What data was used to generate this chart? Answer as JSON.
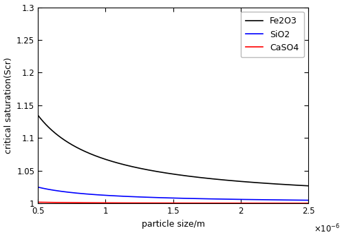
{
  "title": "",
  "xlabel": "particle size/m",
  "ylabel": "critical saturation(Scr)",
  "xlim": [
    5e-07,
    2.5e-06
  ],
  "ylim": [
    1.0,
    1.3
  ],
  "xticks": [
    5e-07,
    1e-06,
    1.5e-06,
    2e-06,
    2.5e-06
  ],
  "xtick_labels": [
    "0.5",
    "1",
    "1.5",
    "2",
    "2.5"
  ],
  "yticks": [
    1.0,
    1.05,
    1.1,
    1.15,
    1.2,
    1.25,
    1.3
  ],
  "ytick_labels": [
    "1",
    "1.05",
    "1.1",
    "1.15",
    "1.2",
    "1.25",
    "1.3"
  ],
  "lines": [
    {
      "label": "Fe2O3",
      "color": "#000000",
      "linewidth": 1.2,
      "C": 6.75e-08
    },
    {
      "label": "SiO2",
      "color": "#0000ff",
      "linewidth": 1.2,
      "C": 1.25e-08
    },
    {
      "label": "CaSO4",
      "color": "#ff0000",
      "linewidth": 1.2,
      "C": 1e-09
    }
  ],
  "legend_fontsize": 9,
  "axis_fontsize": 9,
  "tick_fontsize": 8.5,
  "background_color": "#ffffff",
  "figsize": [
    5.0,
    3.44
  ],
  "dpi": 100
}
